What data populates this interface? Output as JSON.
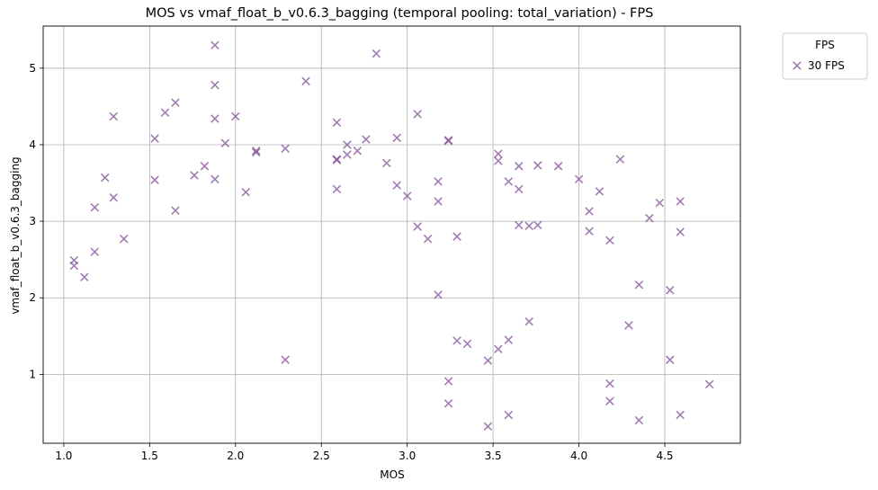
{
  "chart_data": {
    "type": "scatter",
    "title": "MOS vs vmaf_float_b_v0.6.3_bagging (temporal pooling: total_variation) - FPS",
    "xlabel": "MOS",
    "ylabel": "vmaf_float_b_v0.6.3_bagging",
    "xlim": [
      0.88,
      4.94
    ],
    "ylim": [
      0.1,
      5.55
    ],
    "xticks": [
      "1.0",
      "1.5",
      "2.0",
      "2.5",
      "3.0",
      "3.5",
      "4.0",
      "4.5"
    ],
    "yticks": [
      "1",
      "2",
      "3",
      "4",
      "5"
    ],
    "grid": true,
    "legend": {
      "title": "FPS",
      "placement": "outside top-right"
    },
    "colors": {
      "marker": "#7e4a94"
    },
    "series": [
      {
        "name": "30 FPS",
        "marker": "x",
        "points": [
          [
            1.06,
            2.49
          ],
          [
            1.06,
            2.42
          ],
          [
            1.12,
            2.27
          ],
          [
            1.18,
            3.18
          ],
          [
            1.18,
            2.6
          ],
          [
            1.24,
            3.57
          ],
          [
            1.29,
            4.37
          ],
          [
            1.29,
            3.31
          ],
          [
            1.35,
            2.77
          ],
          [
            1.53,
            4.08
          ],
          [
            1.53,
            3.54
          ],
          [
            1.59,
            4.42
          ],
          [
            1.65,
            4.55
          ],
          [
            1.65,
            3.14
          ],
          [
            1.76,
            3.6
          ],
          [
            1.82,
            3.72
          ],
          [
            1.88,
            5.3
          ],
          [
            1.88,
            4.78
          ],
          [
            1.88,
            4.34
          ],
          [
            1.88,
            3.55
          ],
          [
            1.94,
            4.02
          ],
          [
            2.0,
            4.37
          ],
          [
            2.06,
            3.38
          ],
          [
            2.12,
            3.92
          ],
          [
            2.12,
            3.9
          ],
          [
            2.29,
            3.95
          ],
          [
            2.29,
            1.19
          ],
          [
            2.41,
            4.83
          ],
          [
            2.59,
            4.29
          ],
          [
            2.59,
            3.8
          ],
          [
            2.59,
            3.81
          ],
          [
            2.59,
            3.42
          ],
          [
            2.65,
            4.0
          ],
          [
            2.65,
            3.87
          ],
          [
            2.71,
            3.92
          ],
          [
            2.76,
            4.07
          ],
          [
            2.82,
            5.19
          ],
          [
            2.88,
            3.76
          ],
          [
            2.94,
            4.09
          ],
          [
            2.94,
            3.47
          ],
          [
            3.0,
            3.33
          ],
          [
            3.06,
            4.4
          ],
          [
            3.06,
            2.93
          ],
          [
            3.12,
            2.77
          ],
          [
            3.18,
            3.52
          ],
          [
            3.18,
            3.26
          ],
          [
            3.18,
            2.04
          ],
          [
            3.24,
            4.06
          ],
          [
            3.24,
            4.05
          ],
          [
            3.24,
            0.91
          ],
          [
            3.24,
            0.62
          ],
          [
            3.29,
            2.8
          ],
          [
            3.29,
            1.44
          ],
          [
            3.35,
            1.4
          ],
          [
            3.47,
            1.18
          ],
          [
            3.47,
            0.32
          ],
          [
            3.53,
            3.88
          ],
          [
            3.53,
            3.79
          ],
          [
            3.53,
            1.33
          ],
          [
            3.59,
            3.52
          ],
          [
            3.59,
            1.45
          ],
          [
            3.59,
            0.47
          ],
          [
            3.65,
            3.72
          ],
          [
            3.65,
            3.42
          ],
          [
            3.65,
            2.95
          ],
          [
            3.71,
            2.94
          ],
          [
            3.71,
            1.69
          ],
          [
            3.76,
            3.73
          ],
          [
            3.76,
            2.95
          ],
          [
            3.88,
            3.72
          ],
          [
            4.0,
            3.55
          ],
          [
            4.06,
            3.13
          ],
          [
            4.06,
            2.87
          ],
          [
            4.12,
            3.39
          ],
          [
            4.18,
            2.75
          ],
          [
            4.18,
            0.88
          ],
          [
            4.18,
            0.65
          ],
          [
            4.24,
            3.81
          ],
          [
            4.29,
            1.64
          ],
          [
            4.35,
            2.17
          ],
          [
            4.35,
            0.4
          ],
          [
            4.41,
            3.04
          ],
          [
            4.47,
            3.24
          ],
          [
            4.53,
            2.1
          ],
          [
            4.53,
            1.19
          ],
          [
            4.59,
            3.26
          ],
          [
            4.59,
            2.86
          ],
          [
            4.59,
            0.47
          ],
          [
            4.76,
            0.87
          ]
        ]
      }
    ]
  }
}
